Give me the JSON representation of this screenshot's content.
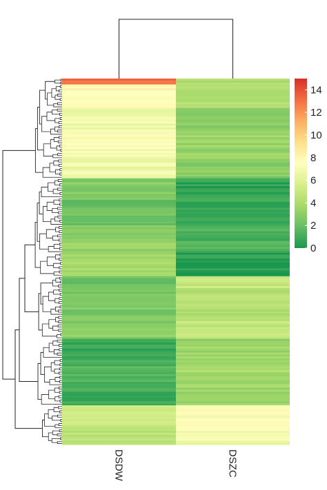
{
  "chart_data": {
    "type": "heatmap",
    "title": "",
    "columns": [
      "DSDW",
      "DSZC"
    ],
    "color_scale": {
      "min": 0,
      "max": 15,
      "ticks": [
        "0",
        "2",
        "4",
        "6",
        "8",
        "10",
        "12",
        "14"
      ],
      "colors": [
        "#1a9850",
        "#66bd63",
        "#a6d96a",
        "#d9ef8b",
        "#ffffbf",
        "#fee08b",
        "#fdae61",
        "#f46d43",
        "#d73027"
      ]
    },
    "row_dendrogram": true,
    "column_dendrogram": true,
    "row_segments": [
      {
        "rows": 3,
        "DSDW": 13.0,
        "DSZC": 4.0
      },
      {
        "rows": 12,
        "DSDW": 7.8,
        "DSZC": 3.9
      },
      {
        "rows": 14,
        "DSDW": 6.8,
        "DSZC": 3.0
      },
      {
        "rows": 12,
        "DSDW": 7.2,
        "DSZC": 3.4
      },
      {
        "rows": 10,
        "DSDW": 6.6,
        "DSZC": 2.8
      },
      {
        "rows": 10,
        "DSDW": 2.8,
        "DSZC": 0.4
      },
      {
        "rows": 14,
        "DSDW": 2.2,
        "DSZC": 0.6
      },
      {
        "rows": 14,
        "DSDW": 3.2,
        "DSZC": 1.2
      },
      {
        "rows": 12,
        "DSDW": 3.6,
        "DSZC": 0.3
      },
      {
        "rows": 6,
        "DSDW": 1.8,
        "DSZC": 5.0
      },
      {
        "rows": 14,
        "DSDW": 2.6,
        "DSZC": 4.2
      },
      {
        "rows": 12,
        "DSDW": 3.0,
        "DSZC": 4.8
      },
      {
        "rows": 10,
        "DSDW": 0.8,
        "DSZC": 3.4
      },
      {
        "rows": 14,
        "DSDW": 1.4,
        "DSZC": 3.8
      },
      {
        "rows": 10,
        "DSDW": 0.9,
        "DSZC": 3.6
      },
      {
        "rows": 12,
        "DSDW": 5.0,
        "DSZC": 7.6
      },
      {
        "rows": 8,
        "DSDW": 4.6,
        "DSZC": 6.8
      }
    ]
  }
}
